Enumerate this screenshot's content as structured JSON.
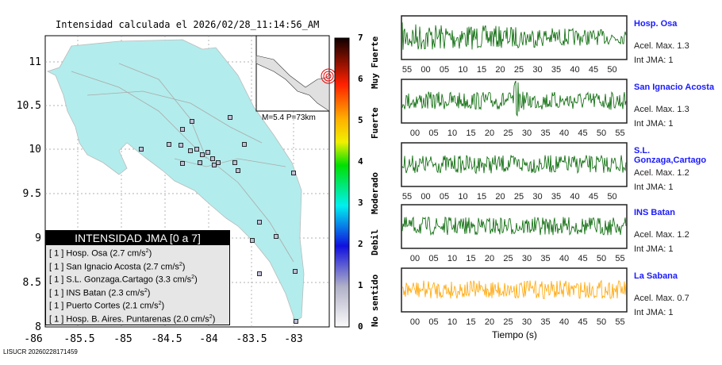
{
  "title": "Intensidad calculada el 2026/02/28_11:14:56_AM",
  "map": {
    "y_ticks": [
      "11",
      "10.5",
      "10",
      "9.5",
      "9",
      "8.5",
      "8"
    ],
    "x_ticks": [
      "-86",
      "-85.5",
      "-85",
      "-84.5",
      "-84",
      "-83.5",
      "-83"
    ],
    "inset_label": "M=5.4 P=73km"
  },
  "legend": {
    "title": "INTENSIDAD JMA [0 a 7]",
    "items": [
      {
        "int": "[ 1 ]",
        "name": "Hosp. Osa",
        "acc": "(2.7 cm/s",
        "exp": "2",
        ")": ")"
      },
      {
        "int": "[ 1 ]",
        "name": "San Ignacio Acosta",
        "acc": "(2.7 cm/s",
        "exp": "2"
      },
      {
        "int": "[ 1 ]",
        "name": "S.L. Gonzaga.Cartago",
        "acc": "(3.3 cm/s",
        "exp": "2"
      },
      {
        "int": "[ 1 ]",
        "name": "INS Batan",
        "acc": "(2.3 cm/s",
        "exp": "2"
      },
      {
        "int": "[ 1 ]",
        "name": "Puerto Cortes",
        "acc": "(2.1 cm/s",
        "exp": "2"
      },
      {
        "int": "[ 1 ]",
        "name": "Hosp. B. Aires. Puntarenas",
        "acc": "(2.0 cm/s",
        "exp": "2"
      }
    ]
  },
  "colorbar": {
    "ticks": [
      "0",
      "1",
      "2",
      "3",
      "4",
      "5",
      "6",
      "7"
    ],
    "labels": [
      "No sentido",
      "Debil",
      "Moderado",
      "Fuerte",
      "Muy Fuerte"
    ]
  },
  "stations": [
    {
      "name": "Hosp. Osa",
      "acel": "Acel. Max. 1.3",
      "int": "Int JMA: 1",
      "color": "#006400",
      "ticks": [
        "55",
        "00",
        "05",
        "10",
        "15",
        "20",
        "25",
        "30",
        "35",
        "40",
        "45",
        "50"
      ]
    },
    {
      "name": "San Ignacio Acosta",
      "acel": "Acel. Max. 1.3",
      "int": "Int JMA: 1",
      "color": "#006400",
      "ticks": [
        "00",
        "05",
        "10",
        "15",
        "20",
        "25",
        "30",
        "35",
        "40",
        "45",
        "50",
        "55"
      ]
    },
    {
      "name": "S.L. Gonzaga,Cartago",
      "acel": "Acel. Max. 1.2",
      "int": "Int JMA: 1",
      "color": "#006400",
      "ticks": [
        "55",
        "00",
        "05",
        "10",
        "15",
        "20",
        "25",
        "30",
        "35",
        "40",
        "45",
        "50"
      ]
    },
    {
      "name": "INS Batan",
      "acel": "Acel. Max. 1.2",
      "int": "Int JMA: 1",
      "color": "#006400",
      "ticks": [
        "00",
        "05",
        "10",
        "15",
        "20",
        "25",
        "30",
        "35",
        "40",
        "45",
        "50",
        "55"
      ]
    },
    {
      "name": "La Sabana",
      "acel": "Acel. Max. 0.7",
      "int": "Int JMA: 1",
      "color": "#ffa500",
      "ticks": [
        "00",
        "05",
        "10",
        "15",
        "20",
        "25",
        "30",
        "35",
        "40",
        "45",
        "50",
        "55"
      ]
    }
  ],
  "xaxis_label": "Tiempo (s)",
  "footer": "LISUCR 20260228171459"
}
